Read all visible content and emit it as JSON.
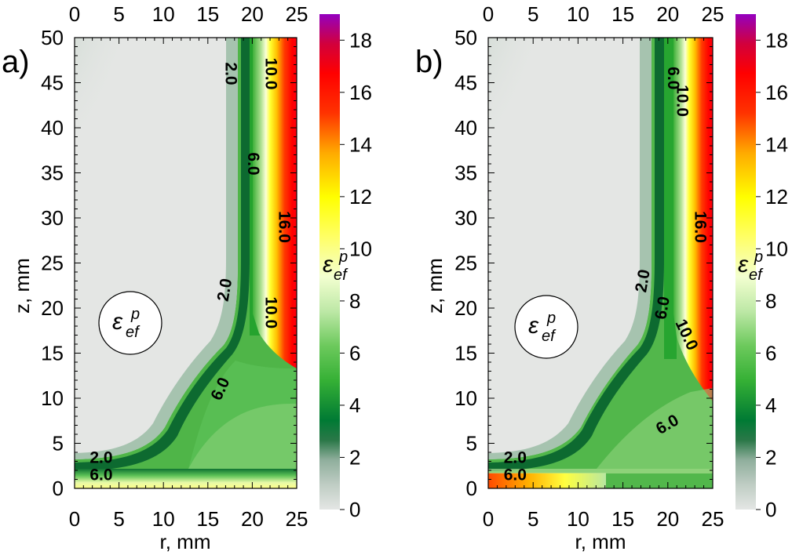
{
  "chart_data": [
    {
      "type": "heatmap",
      "panel_label": "a)",
      "xlabel": "r, mm",
      "ylabel": "z, mm",
      "x_ticks": [
        0,
        5,
        10,
        15,
        20,
        25
      ],
      "y_ticks": [
        0,
        5,
        10,
        15,
        20,
        25,
        30,
        35,
        40,
        45,
        50
      ],
      "xlim": [
        0,
        25
      ],
      "ylim": [
        0,
        50
      ],
      "colorbar_ticks": [
        0,
        2,
        4,
        6,
        8,
        10,
        12,
        14,
        16,
        18
      ],
      "colorbar_range": [
        0,
        19
      ],
      "colorbar_label": "εefp",
      "inset_label": "εefp",
      "contour_labels": [
        {
          "text": "2.0",
          "r": 17.5,
          "z": 46,
          "angle": 90
        },
        {
          "text": "10.0",
          "r": 22,
          "z": 46,
          "angle": 90
        },
        {
          "text": "6.0",
          "r": 20,
          "z": 36,
          "angle": 90
        },
        {
          "text": "16.0",
          "r": 23.5,
          "z": 29,
          "angle": 90
        },
        {
          "text": "2.0",
          "r": 17,
          "z": 22,
          "angle": -80
        },
        {
          "text": "10.0",
          "r": 22,
          "z": 19.5,
          "angle": 90
        },
        {
          "text": "6.0",
          "r": 16.5,
          "z": 11,
          "angle": -65
        },
        {
          "text": "2.0",
          "r": 3,
          "z": 3.3,
          "angle": 0
        },
        {
          "text": "6.0",
          "r": 3,
          "z": 1.4,
          "angle": 0
        }
      ]
    },
    {
      "type": "heatmap",
      "panel_label": "b)",
      "xlabel": "r, mm",
      "ylabel": "z, mm",
      "x_ticks": [
        0,
        5,
        10,
        15,
        20,
        25
      ],
      "y_ticks": [
        0,
        5,
        10,
        15,
        20,
        25,
        30,
        35,
        40,
        45,
        50
      ],
      "xlim": [
        0,
        25
      ],
      "ylim": [
        0,
        50
      ],
      "colorbar_ticks": [
        0,
        2,
        4,
        6,
        8,
        10,
        12,
        14,
        16,
        18
      ],
      "colorbar_range": [
        0,
        19
      ],
      "colorbar_label": "εefp",
      "inset_label": "εefp",
      "contour_labels": [
        {
          "text": "6.0",
          "r": 20.5,
          "z": 45.5,
          "angle": 90
        },
        {
          "text": "10.0",
          "r": 21.5,
          "z": 43,
          "angle": 90
        },
        {
          "text": "16.0",
          "r": 23.5,
          "z": 29,
          "angle": 90
        },
        {
          "text": "2.0",
          "r": 17.3,
          "z": 23,
          "angle": -80
        },
        {
          "text": "6.0",
          "r": 19.5,
          "z": 20,
          "angle": -80
        },
        {
          "text": "10.0",
          "r": 22,
          "z": 17,
          "angle": 65
        },
        {
          "text": "6.0",
          "r": 20,
          "z": 7,
          "angle": -30
        },
        {
          "text": "2.0",
          "r": 3,
          "z": 3.3,
          "angle": 0
        },
        {
          "text": "6.0",
          "r": 3,
          "z": 1.4,
          "angle": 0
        }
      ]
    }
  ],
  "colors": {
    "cmap": [
      "#e4e6e4",
      "#8fae9c",
      "#2a7848",
      "#007a34",
      "#35b035",
      "#a0dd88",
      "#f3ffd0",
      "#ffff33",
      "#ffbf00",
      "#ff4a00",
      "#ff0000",
      "#9900bb"
    ]
  }
}
